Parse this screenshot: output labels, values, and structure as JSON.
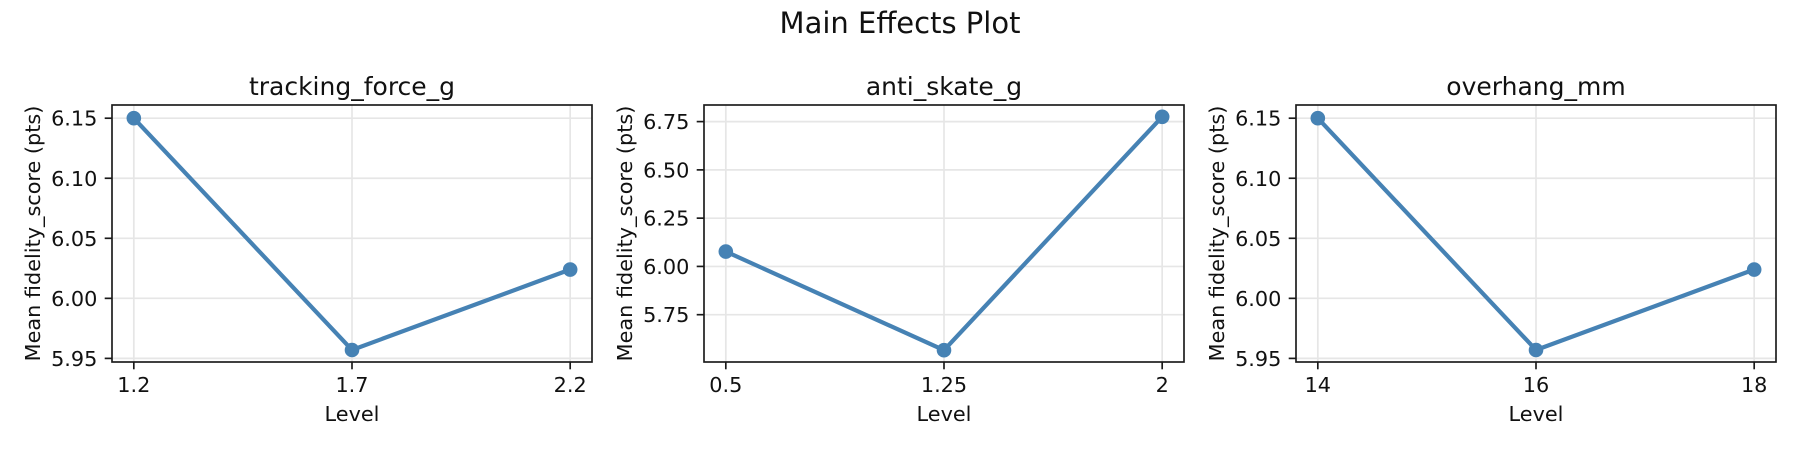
{
  "figure": {
    "title": "Main Effects Plot",
    "background_color": "#ffffff",
    "accent_color": "#4682b4",
    "grid_color": "#e6e6e6",
    "spine_color": "#1a1a1a",
    "text_color": "#111111",
    "grid": true,
    "legend": "none"
  },
  "chart_data": [
    {
      "type": "line",
      "title": "tracking_force_g",
      "xlabel": "Level",
      "ylabel": "Mean fidelity_score (pts)",
      "x": [
        1.2,
        1.7,
        2.2
      ],
      "x_tick_labels": [
        "1.2",
        "1.7",
        "2.2"
      ],
      "y": [
        6.15,
        5.957,
        6.024
      ],
      "y_ticks": [
        5.95,
        6.0,
        6.05,
        6.1,
        6.15
      ],
      "y_tick_labels": [
        "5.95",
        "6.00",
        "6.05",
        "6.10",
        "6.15"
      ],
      "xlim": [
        1.15,
        2.25
      ],
      "ylim": [
        5.947,
        6.161
      ],
      "marker": "circle",
      "grid": true
    },
    {
      "type": "line",
      "title": "anti_skate_g",
      "xlabel": "Level",
      "ylabel": "Mean fidelity_score (pts)",
      "x": [
        0.5,
        1.25,
        2
      ],
      "x_tick_labels": [
        "0.5",
        "1.25",
        "2"
      ],
      "y": [
        6.077,
        5.566,
        6.775
      ],
      "y_ticks": [
        5.75,
        6.0,
        6.25,
        6.5,
        6.75
      ],
      "y_tick_labels": [
        "5.75",
        "6.00",
        "6.25",
        "6.50",
        "6.75"
      ],
      "xlim": [
        0.425,
        2.075
      ],
      "ylim": [
        5.505,
        6.836
      ],
      "marker": "circle",
      "grid": true
    },
    {
      "type": "line",
      "title": "overhang_mm",
      "xlabel": "Level",
      "ylabel": "Mean fidelity_score (pts)",
      "x": [
        14,
        16,
        18
      ],
      "x_tick_labels": [
        "14",
        "16",
        "18"
      ],
      "y": [
        6.15,
        5.957,
        6.024
      ],
      "y_ticks": [
        5.95,
        6.0,
        6.05,
        6.1,
        6.15
      ],
      "y_tick_labels": [
        "5.95",
        "6.00",
        "6.05",
        "6.10",
        "6.15"
      ],
      "xlim": [
        13.8,
        18.2
      ],
      "ylim": [
        5.947,
        6.161
      ],
      "marker": "circle",
      "grid": true
    }
  ]
}
